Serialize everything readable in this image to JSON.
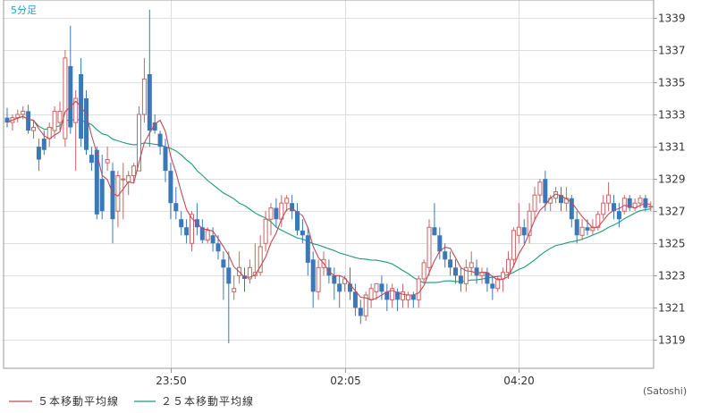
{
  "chart_data": {
    "type": "candlestick",
    "period_label": "5分足",
    "credit": "(Satoshi)",
    "y_ticks": [
      1339,
      1337,
      1335,
      1333,
      1331,
      1329,
      1327,
      1325,
      1323,
      1321,
      1319
    ],
    "ylim": [
      1317.25,
      1340.1
    ],
    "x_ticks": [
      {
        "label": "23:50",
        "index": 31
      },
      {
        "label": "02:05",
        "index": 64
      },
      {
        "label": "04:20",
        "index": 97
      }
    ],
    "grid": true,
    "legend_position": "bottom-left",
    "colors": {
      "up": "#c86464",
      "down": "#3a78b8",
      "ma5": "#c04a55",
      "ma25": "#1a9a78",
      "grid": "#dddddd",
      "axis": "#999999"
    },
    "series_labels": {
      "ma5": "５本移動平均線",
      "ma25": "２５本移動平均線"
    },
    "candles": [
      [
        1332.8,
        1333.4,
        1332.2,
        1332.5
      ],
      [
        1332.5,
        1333.0,
        1332.0,
        1332.8
      ],
      [
        1332.8,
        1333.3,
        1332.5,
        1333.0
      ],
      [
        1333.0,
        1333.5,
        1332.7,
        1333.2
      ],
      [
        1333.2,
        1333.6,
        1331.8,
        1332.0
      ],
      [
        1332.0,
        1332.6,
        1331.5,
        1332.2
      ],
      [
        1331.0,
        1331.5,
        1329.5,
        1330.2
      ],
      [
        1331.5,
        1332.0,
        1330.5,
        1330.8
      ],
      [
        1331.5,
        1332.5,
        1331.0,
        1332.2
      ],
      [
        1332.0,
        1333.5,
        1331.5,
        1333.2
      ],
      [
        1332.5,
        1333.8,
        1332.0,
        1333.2
      ],
      [
        1331.5,
        1337.0,
        1331.0,
        1336.5
      ],
      [
        1336.0,
        1338.5,
        1331.8,
        1332.2
      ],
      [
        1332.5,
        1334.5,
        1329.5,
        1334.0
      ],
      [
        1335.5,
        1336.5,
        1331.0,
        1331.5
      ],
      [
        1334.0,
        1334.5,
        1330.5,
        1330.8
      ],
      [
        1330.5,
        1331.0,
        1329.5,
        1330.0
      ],
      [
        1330.8,
        1331.0,
        1326.5,
        1326.8
      ],
      [
        1329.0,
        1330.5,
        1326.5,
        1327.0
      ],
      [
        1330.0,
        1331.0,
        1329.5,
        1330.2
      ],
      [
        1329.5,
        1330.0,
        1325.0,
        1326.5
      ],
      [
        1327.0,
        1329.5,
        1326.0,
        1329.2
      ],
      [
        1329.0,
        1330.0,
        1326.5,
        1329.0
      ],
      [
        1328.8,
        1329.5,
        1328.0,
        1329.2
      ],
      [
        1329.2,
        1330.0,
        1328.8,
        1329.8
      ],
      [
        1329.5,
        1333.5,
        1329.5,
        1333.0
      ],
      [
        1333.0,
        1336.5,
        1332.5,
        1335.2
      ],
      [
        1335.5,
        1339.5,
        1331.0,
        1332.0
      ],
      [
        1332.5,
        1333.0,
        1331.8,
        1332.0
      ],
      [
        1331.8,
        1332.0,
        1330.5,
        1331.0
      ],
      [
        1331.0,
        1331.5,
        1328.8,
        1329.5
      ],
      [
        1329.5,
        1330.0,
        1326.5,
        1327.5
      ],
      [
        1327.5,
        1328.5,
        1326.5,
        1327.0
      ],
      [
        1326.5,
        1327.0,
        1325.5,
        1326.0
      ],
      [
        1326.0,
        1326.5,
        1325.0,
        1325.5
      ],
      [
        1325.0,
        1327.0,
        1324.5,
        1326.8
      ],
      [
        1326.5,
        1327.5,
        1325.5,
        1326.0
      ],
      [
        1326.0,
        1326.5,
        1325.0,
        1325.2
      ],
      [
        1325.2,
        1326.0,
        1325.0,
        1325.8
      ],
      [
        1325.5,
        1326.0,
        1324.5,
        1325.0
      ],
      [
        1325.0,
        1325.5,
        1324.0,
        1324.5
      ],
      [
        1324.0,
        1324.5,
        1321.5,
        1323.5
      ],
      [
        1323.5,
        1324.5,
        1318.8,
        1322.5
      ],
      [
        1322.0,
        1323.0,
        1321.5,
        1322.2
      ],
      [
        1323.0,
        1324.5,
        1322.5,
        1323.5
      ],
      [
        1323.0,
        1323.5,
        1322.0,
        1322.8
      ],
      [
        1322.8,
        1324.0,
        1322.5,
        1323.5
      ],
      [
        1323.0,
        1325.0,
        1322.8,
        1323.2
      ],
      [
        1323.2,
        1325.5,
        1323.0,
        1324.8
      ],
      [
        1325.0,
        1327.0,
        1324.5,
        1326.5
      ],
      [
        1326.5,
        1327.5,
        1325.5,
        1327.2
      ],
      [
        1327.2,
        1327.8,
        1326.0,
        1326.5
      ],
      [
        1326.5,
        1328.0,
        1326.0,
        1327.5
      ],
      [
        1327.5,
        1328.0,
        1327.0,
        1327.8
      ],
      [
        1327.5,
        1328.0,
        1326.5,
        1327.0
      ],
      [
        1327.0,
        1327.5,
        1325.5,
        1325.8
      ],
      [
        1325.8,
        1326.5,
        1325.0,
        1325.5
      ],
      [
        1325.5,
        1326.0,
        1323.0,
        1323.8
      ],
      [
        1324.0,
        1324.5,
        1321.0,
        1322.0
      ],
      [
        1322.0,
        1324.0,
        1321.5,
        1323.5
      ],
      [
        1323.5,
        1324.5,
        1323.0,
        1324.0
      ],
      [
        1323.5,
        1324.0,
        1322.5,
        1323.0
      ],
      [
        1323.0,
        1323.5,
        1321.5,
        1322.5
      ],
      [
        1322.5,
        1323.0,
        1321.0,
        1322.0
      ],
      [
        1322.5,
        1323.0,
        1322.0,
        1322.8
      ],
      [
        1322.5,
        1323.5,
        1321.5,
        1322.0
      ],
      [
        1322.0,
        1322.5,
        1320.5,
        1321.0
      ],
      [
        1321.0,
        1321.5,
        1320.0,
        1320.5
      ],
      [
        1320.5,
        1322.0,
        1320.2,
        1321.8
      ],
      [
        1321.5,
        1322.5,
        1321.0,
        1322.2
      ],
      [
        1322.0,
        1322.5,
        1321.5,
        1322.5
      ],
      [
        1322.5,
        1323.0,
        1321.5,
        1322.0
      ],
      [
        1322.0,
        1322.5,
        1320.8,
        1321.5
      ],
      [
        1321.5,
        1322.5,
        1321.0,
        1322.2
      ],
      [
        1322.0,
        1322.2,
        1320.8,
        1321.5
      ],
      [
        1321.5,
        1322.5,
        1321.0,
        1322.0
      ],
      [
        1321.5,
        1322.0,
        1321.0,
        1321.8
      ],
      [
        1321.8,
        1322.0,
        1321.0,
        1321.5
      ],
      [
        1321.5,
        1323.0,
        1321.0,
        1322.8
      ],
      [
        1322.8,
        1324.0,
        1322.5,
        1323.8
      ],
      [
        1323.5,
        1326.5,
        1323.0,
        1326.0
      ],
      [
        1326.0,
        1327.5,
        1325.5,
        1325.5
      ],
      [
        1325.5,
        1326.0,
        1324.0,
        1324.5
      ],
      [
        1324.5,
        1325.0,
        1323.5,
        1324.0
      ],
      [
        1324.0,
        1324.5,
        1323.0,
        1323.5
      ],
      [
        1323.5,
        1324.0,
        1322.5,
        1323.0
      ],
      [
        1323.0,
        1323.5,
        1322.0,
        1322.5
      ],
      [
        1322.5,
        1324.0,
        1322.0,
        1323.5
      ],
      [
        1323.5,
        1324.5,
        1323.0,
        1323.8
      ],
      [
        1323.5,
        1324.0,
        1322.5,
        1323.0
      ],
      [
        1323.0,
        1323.5,
        1322.5,
        1323.2
      ],
      [
        1323.2,
        1323.5,
        1322.0,
        1322.5
      ],
      [
        1322.5,
        1323.0,
        1321.5,
        1322.2
      ],
      [
        1322.2,
        1323.0,
        1322.0,
        1322.8
      ],
      [
        1322.8,
        1323.5,
        1322.0,
        1323.2
      ],
      [
        1323.2,
        1324.5,
        1322.8,
        1324.0
      ],
      [
        1324.0,
        1326.0,
        1323.5,
        1325.8
      ],
      [
        1325.5,
        1327.5,
        1325.0,
        1326.0
      ],
      [
        1326.0,
        1326.5,
        1325.0,
        1325.5
      ],
      [
        1325.5,
        1327.5,
        1325.0,
        1327.0
      ],
      [
        1327.0,
        1328.5,
        1326.5,
        1328.0
      ],
      [
        1328.0,
        1329.0,
        1327.5,
        1328.8
      ],
      [
        1329.0,
        1329.5,
        1327.0,
        1327.5
      ],
      [
        1327.5,
        1328.0,
        1327.0,
        1327.8
      ],
      [
        1327.8,
        1328.5,
        1327.5,
        1328.2
      ],
      [
        1328.0,
        1328.5,
        1327.0,
        1327.5
      ],
      [
        1327.5,
        1328.5,
        1327.0,
        1327.8
      ],
      [
        1327.8,
        1328.0,
        1326.0,
        1326.5
      ],
      [
        1326.5,
        1327.0,
        1325.0,
        1325.5
      ],
      [
        1325.5,
        1326.5,
        1325.2,
        1326.0
      ],
      [
        1326.0,
        1326.5,
        1325.5,
        1325.8
      ],
      [
        1325.8,
        1326.5,
        1325.5,
        1326.0
      ],
      [
        1326.0,
        1327.0,
        1325.8,
        1326.8
      ],
      [
        1326.8,
        1328.0,
        1326.5,
        1327.5
      ],
      [
        1327.5,
        1328.8,
        1327.0,
        1328.0
      ],
      [
        1327.5,
        1328.0,
        1326.5,
        1327.0
      ],
      [
        1327.0,
        1327.5,
        1326.0,
        1326.5
      ],
      [
        1327.0,
        1328.0,
        1326.8,
        1327.8
      ],
      [
        1327.8,
        1328.0,
        1327.0,
        1327.2
      ],
      [
        1327.2,
        1327.8,
        1327.0,
        1327.5
      ],
      [
        1327.5,
        1328.0,
        1327.2,
        1327.8
      ],
      [
        1327.8,
        1328.0,
        1327.0,
        1327.2
      ],
      [
        1327.3,
        1327.6,
        1327.0,
        1327.3
      ]
    ]
  }
}
